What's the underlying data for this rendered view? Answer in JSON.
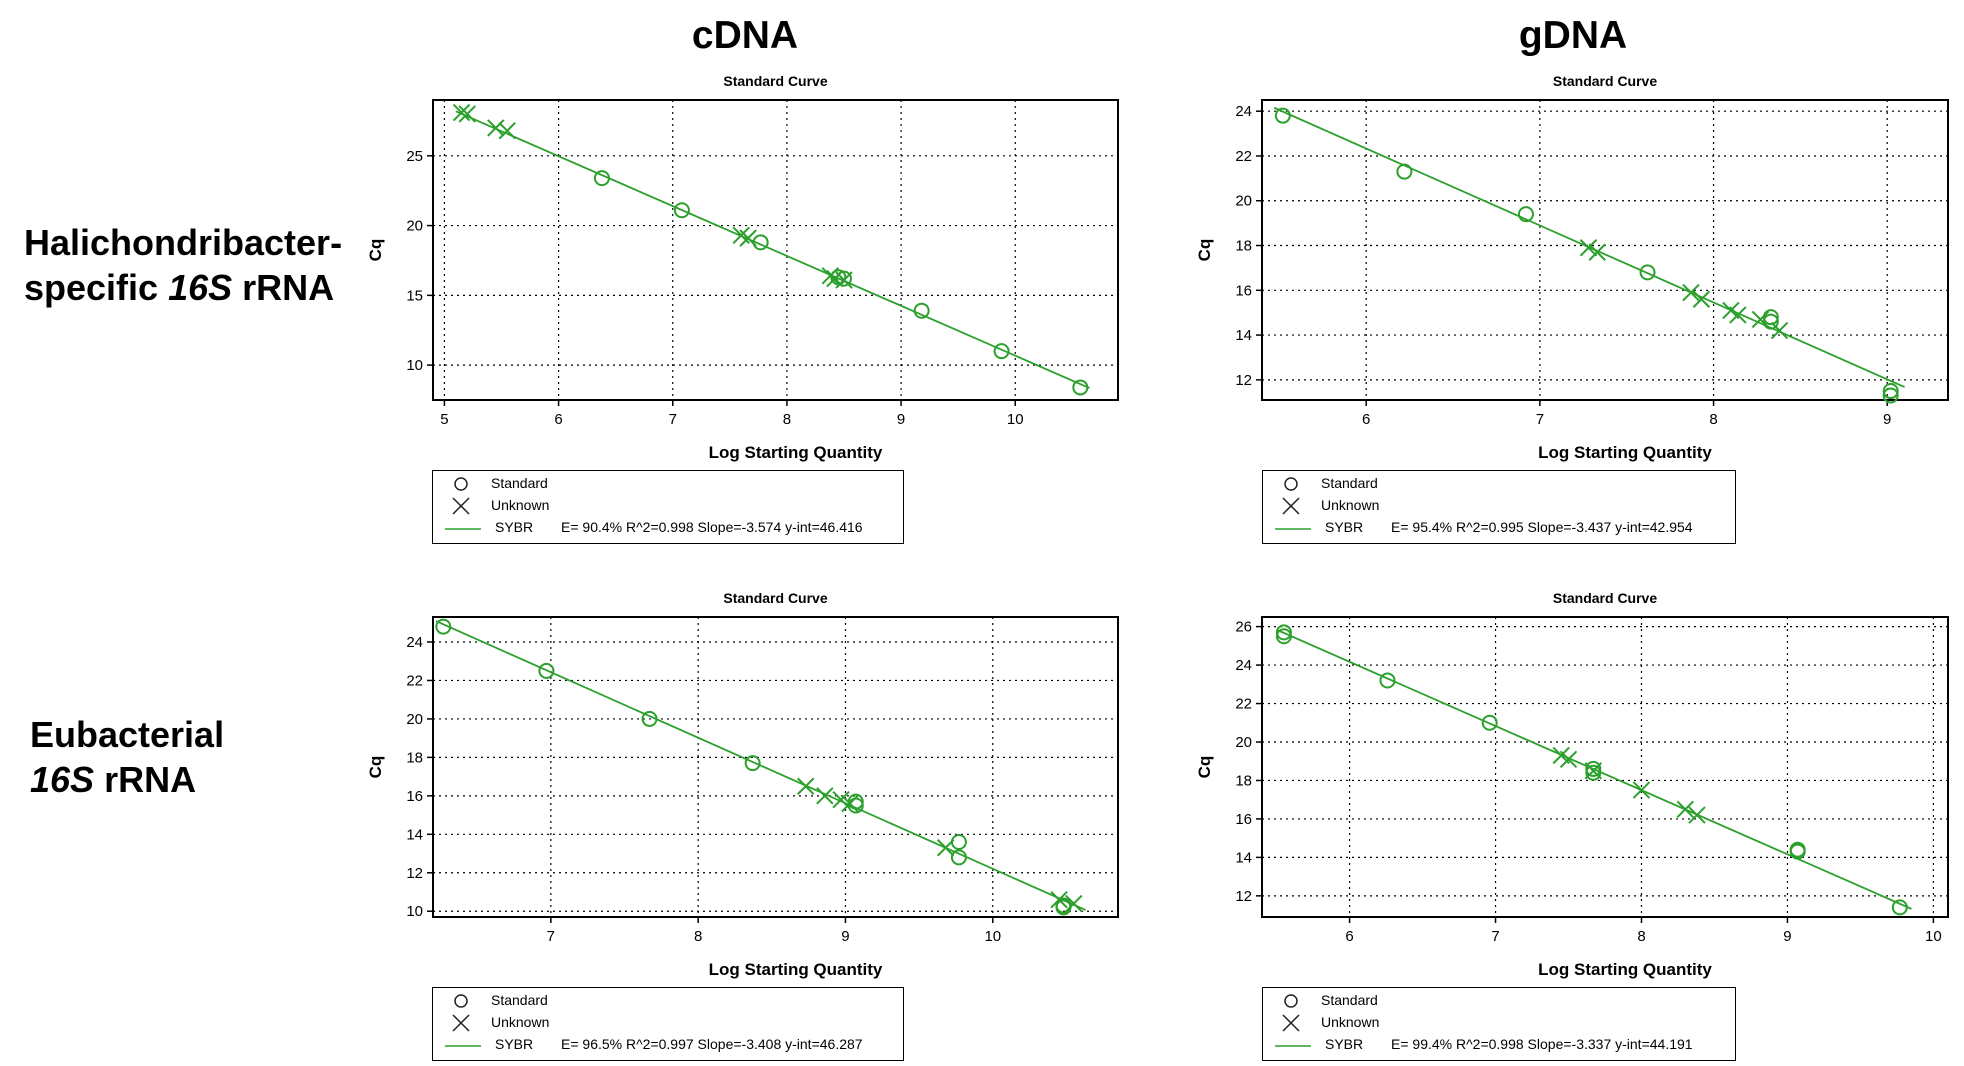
{
  "column_titles": [
    "cDNA",
    "gDNA"
  ],
  "row_labels": [
    {
      "line1": "Halichondribacter-",
      "line2_italic": "16S",
      "line2_prefix": "specific ",
      "line2_suffix": " rRNA"
    },
    {
      "line1": "Eubacterial",
      "line2_italic": "16S",
      "line2_prefix": "",
      "line2_suffix": " rRNA"
    }
  ],
  "legend_labels": {
    "standard": "Standard",
    "unknown": "Unknown",
    "fit": "SYBR"
  },
  "colors": {
    "series": "#2ca02c",
    "grid": "#000000"
  },
  "chart_data": [
    {
      "type": "scatter",
      "title": "Standard Curve",
      "xlabel": "Log Starting Quantity",
      "ylabel": "Cq",
      "xlim": [
        4.9,
        10.9
      ],
      "ylim": [
        7.5,
        29
      ],
      "xticks": [
        5,
        6,
        7,
        8,
        9,
        10
      ],
      "yticks": [
        10,
        15,
        20,
        25
      ],
      "grid": true,
      "fit": {
        "efficiency": "E= 90.4%",
        "r2": "R^2=0.998",
        "slope": "Slope=-3.574",
        "yint": "y-int=46.416",
        "m": -3.574,
        "b": 46.416
      },
      "series": [
        {
          "name": "Standard",
          "marker": "circle",
          "points": [
            [
              6.38,
              23.4
            ],
            [
              7.08,
              21.1
            ],
            [
              7.77,
              18.8
            ],
            [
              8.45,
              16.3
            ],
            [
              8.5,
              16.2
            ],
            [
              9.18,
              13.9
            ],
            [
              9.88,
              11.0
            ],
            [
              10.57,
              8.4
            ]
          ]
        },
        {
          "name": "Unknown",
          "marker": "x",
          "points": [
            [
              5.15,
              28.1
            ],
            [
              5.2,
              28.0
            ],
            [
              5.45,
              27.0
            ],
            [
              5.55,
              26.8
            ],
            [
              7.6,
              19.3
            ],
            [
              7.66,
              19.1
            ],
            [
              8.38,
              16.4
            ],
            [
              8.42,
              16.2
            ],
            [
              8.5,
              16.1
            ]
          ]
        }
      ]
    },
    {
      "type": "scatter",
      "title": "Standard Curve",
      "xlabel": "Log Starting Quantity",
      "ylabel": "Cq",
      "xlim": [
        5.4,
        9.35
      ],
      "ylim": [
        11.1,
        24.5
      ],
      "xticks": [
        6,
        7,
        8,
        9
      ],
      "yticks": [
        12,
        14,
        16,
        18,
        20,
        22,
        24
      ],
      "grid": true,
      "fit": {
        "efficiency": "E= 95.4%",
        "r2": "R^2=0.995",
        "slope": "Slope=-3.437",
        "yint": "y-int=42.954",
        "m": -3.437,
        "b": 42.954
      },
      "series": [
        {
          "name": "Standard",
          "marker": "circle",
          "points": [
            [
              5.52,
              23.8
            ],
            [
              6.22,
              21.3
            ],
            [
              6.92,
              19.4
            ],
            [
              7.62,
              16.8
            ],
            [
              8.33,
              14.8
            ],
            [
              8.33,
              14.6
            ],
            [
              9.02,
              11.5
            ],
            [
              9.02,
              11.3
            ]
          ]
        },
        {
          "name": "Unknown",
          "marker": "x",
          "points": [
            [
              7.28,
              17.9
            ],
            [
              7.33,
              17.7
            ],
            [
              7.87,
              15.9
            ],
            [
              7.93,
              15.6
            ],
            [
              8.1,
              15.1
            ],
            [
              8.14,
              14.9
            ],
            [
              8.27,
              14.7
            ],
            [
              8.38,
              14.2
            ]
          ]
        }
      ]
    },
    {
      "type": "scatter",
      "title": "Standard Curve",
      "xlabel": "Log Starting Quantity",
      "ylabel": "Cq",
      "xlim": [
        6.2,
        10.85
      ],
      "ylim": [
        9.7,
        25.3
      ],
      "xticks": [
        7,
        8,
        9,
        10
      ],
      "yticks": [
        10,
        12,
        14,
        16,
        18,
        20,
        22,
        24
      ],
      "grid": true,
      "fit": {
        "efficiency": "E= 96.5%",
        "r2": "R^2=0.997",
        "slope": "Slope=-3.408",
        "yint": "y-int=46.287",
        "m": -3.408,
        "b": 46.287
      },
      "series": [
        {
          "name": "Standard",
          "marker": "circle",
          "points": [
            [
              6.27,
              24.8
            ],
            [
              6.97,
              22.5
            ],
            [
              7.67,
              20.0
            ],
            [
              8.37,
              17.7
            ],
            [
              9.07,
              15.7
            ],
            [
              9.07,
              15.5
            ],
            [
              9.77,
              13.6
            ],
            [
              9.77,
              12.8
            ],
            [
              10.48,
              10.3
            ],
            [
              10.48,
              10.2
            ]
          ]
        },
        {
          "name": "Unknown",
          "marker": "x",
          "points": [
            [
              8.73,
              16.5
            ],
            [
              8.86,
              16.0
            ],
            [
              8.97,
              15.8
            ],
            [
              9.03,
              15.6
            ],
            [
              9.68,
              13.3
            ],
            [
              10.45,
              10.6
            ],
            [
              10.55,
              10.4
            ]
          ]
        }
      ]
    },
    {
      "type": "scatter",
      "title": "Standard Curve",
      "xlabel": "Log Starting Quantity",
      "ylabel": "Cq",
      "xlim": [
        5.4,
        10.1
      ],
      "ylim": [
        10.9,
        26.5
      ],
      "xticks": [
        6,
        7,
        8,
        9,
        10
      ],
      "yticks": [
        12,
        14,
        16,
        18,
        20,
        22,
        24,
        26
      ],
      "grid": true,
      "fit": {
        "efficiency": "E= 99.4%",
        "r2": "R^2=0.998",
        "slope": "Slope=-3.337",
        "yint": "y-int=44.191",
        "m": -3.337,
        "b": 44.191
      },
      "series": [
        {
          "name": "Standard",
          "marker": "circle",
          "points": [
            [
              5.55,
              25.7
            ],
            [
              5.55,
              25.5
            ],
            [
              6.26,
              23.2
            ],
            [
              6.96,
              21.0
            ],
            [
              7.67,
              18.6
            ],
            [
              7.67,
              18.4
            ],
            [
              9.07,
              14.4
            ],
            [
              9.07,
              14.3
            ],
            [
              9.77,
              11.4
            ]
          ]
        },
        {
          "name": "Unknown",
          "marker": "x",
          "points": [
            [
              7.45,
              19.3
            ],
            [
              7.5,
              19.1
            ],
            [
              7.67,
              18.5
            ],
            [
              8.0,
              17.5
            ],
            [
              8.3,
              16.5
            ],
            [
              8.38,
              16.2
            ]
          ]
        }
      ]
    }
  ]
}
